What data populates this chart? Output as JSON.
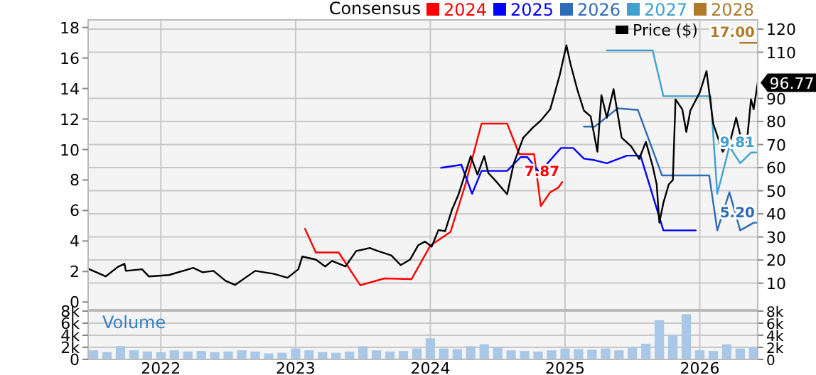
{
  "chart_data": [
    {
      "type": "line",
      "legend_title": "Consensus",
      "legend": "top",
      "grid": true,
      "tick_labels": "y",
      "xlim": [
        2021.46,
        2026.43
      ],
      "xticks": [
        2022,
        2023,
        2024,
        2025,
        2026
      ],
      "ylim": [
        -0.5,
        18.5
      ],
      "yticks": [
        0,
        2,
        4,
        6,
        8,
        10,
        12,
        14,
        16,
        18
      ],
      "y2lim": [
        -1.5,
        124
      ],
      "y2ticks": [
        10,
        20,
        30,
        40,
        50,
        60,
        70,
        80,
        90,
        110,
        120
      ],
      "series": [
        {
          "name": "2024",
          "color": "#ff0000",
          "x": [
            2023.07,
            2023.15,
            2023.32,
            2023.48,
            2023.66,
            2023.86,
            2024.0,
            2024.15,
            2024.26,
            2024.38,
            2024.57,
            2024.66,
            2024.77,
            2024.82,
            2024.89,
            2024.95,
            2024.98
          ],
          "values": [
            4.8,
            3.25,
            3.25,
            1.1,
            1.55,
            1.5,
            3.7,
            4.6,
            7.7,
            11.7,
            11.7,
            9.7,
            9.7,
            6.3,
            7.2,
            7.5,
            7.87
          ],
          "value_labels": [
            null,
            null,
            null,
            null,
            null,
            null,
            null,
            null,
            null,
            null,
            null,
            null,
            null,
            null,
            null,
            null,
            "7.87"
          ]
        },
        {
          "name": "2025",
          "color": "#0000ff",
          "x": [
            2024.08,
            2024.23,
            2024.31,
            2024.38,
            2024.57,
            2024.67,
            2024.72,
            2024.81,
            2024.97,
            2025.06,
            2025.14,
            2025.22,
            2025.31,
            2025.46,
            2025.56,
            2025.73,
            2025.97
          ],
          "values": [
            8.8,
            9.0,
            7.1,
            8.6,
            8.6,
            9.5,
            9.5,
            8.5,
            10.1,
            10.1,
            9.4,
            9.3,
            9.1,
            9.6,
            9.6,
            4.7,
            4.7
          ]
        },
        {
          "name": "2026",
          "color": "#2e6cb8",
          "x": [
            2025.14,
            2025.22,
            2025.39,
            2025.54,
            2025.72,
            2026.07,
            2026.13,
            2026.22,
            2026.3,
            2026.4,
            2026.43
          ],
          "values": [
            11.5,
            11.5,
            12.7,
            12.6,
            8.3,
            8.3,
            4.7,
            7.2,
            4.7,
            5.2,
            5.2
          ],
          "value_labels": [
            null,
            null,
            null,
            null,
            null,
            null,
            null,
            null,
            null,
            null,
            "5.20"
          ]
        },
        {
          "name": "2027",
          "color": "#40a0d0",
          "x": [
            2025.31,
            2025.65,
            2025.73,
            2026.08,
            2026.13,
            2026.22,
            2026.3,
            2026.38,
            2026.43
          ],
          "values": [
            16.5,
            16.5,
            13.5,
            13.5,
            7.1,
            10.2,
            9.1,
            9.8,
            9.81
          ],
          "value_labels": [
            null,
            null,
            null,
            null,
            null,
            null,
            null,
            null,
            "9.81"
          ]
        },
        {
          "name": "2028",
          "color": "#b07a2a",
          "x": [
            2026.3,
            2026.43
          ],
          "values": [
            17.0,
            17.0
          ],
          "value_labels": [
            null,
            "17.00"
          ]
        },
        {
          "name": "Price ($)",
          "color": "#000000",
          "axis": "y2",
          "x": [
            2021.47,
            2021.59,
            2021.68,
            2021.73,
            2021.74,
            2021.86,
            2021.91,
            2022.06,
            2022.24,
            2022.31,
            2022.39,
            2022.48,
            2022.55,
            2022.7,
            2022.84,
            2022.94,
            2023.02,
            2023.05,
            2023.15,
            2023.22,
            2023.27,
            2023.37,
            2023.45,
            2023.55,
            2023.61,
            2023.71,
            2023.78,
            2023.85,
            2023.91,
            2023.96,
            2024.01,
            2024.06,
            2024.11,
            2024.16,
            2024.21,
            2024.3,
            2024.35,
            2024.4,
            2024.43,
            2024.48,
            2024.57,
            2024.62,
            2024.69,
            2024.76,
            2024.82,
            2024.89,
            2024.96,
            2025.01,
            2025.04,
            2025.09,
            2025.14,
            2025.19,
            2025.24,
            2025.27,
            2025.31,
            2025.36,
            2025.42,
            2025.49,
            2025.55,
            2025.6,
            2025.65,
            2025.68,
            2025.7,
            2025.73,
            2025.77,
            2025.8,
            2025.82,
            2025.87,
            2025.9,
            2025.93,
            2026.0,
            2026.05,
            2026.1,
            2026.17,
            2026.23,
            2026.27,
            2026.32,
            2026.35,
            2026.38,
            2026.4,
            2026.43
          ],
          "values": [
            16,
            12.9,
            17,
            18.4,
            15.3,
            16,
            12.9,
            13.5,
            16.6,
            14.7,
            15.3,
            11,
            9.2,
            15.3,
            14,
            12.3,
            16,
            21.5,
            20.2,
            17.2,
            19.6,
            17.2,
            23.9,
            25.2,
            23.9,
            22,
            17.8,
            20.2,
            26.4,
            28,
            25.8,
            33,
            32.5,
            41.7,
            48.5,
            65,
            57,
            65,
            57.7,
            54.6,
            48.5,
            62,
            73,
            77.3,
            80.4,
            85.3,
            100,
            113,
            105,
            94,
            84.7,
            82.2,
            66.9,
            91.4,
            81.6,
            94,
            73,
            69.3,
            63.8,
            71.2,
            60.7,
            52.8,
            36.2,
            44.8,
            52.8,
            54.6,
            89.6,
            85.3,
            75.5,
            84.7,
            92.6,
            101.8,
            79,
            66.9,
            72.4,
            81.6,
            69.3,
            71.2,
            89.6,
            85.3,
            96.77
          ],
          "value_labels": [
            null,
            null,
            null,
            null,
            null,
            null,
            null,
            null,
            null,
            null,
            null,
            null,
            null,
            null,
            null,
            null,
            null,
            null,
            null,
            null,
            null,
            null,
            null,
            null,
            null,
            null,
            null,
            null,
            null,
            null,
            null,
            null,
            null,
            null,
            null,
            null,
            null,
            null,
            null,
            null,
            null,
            null,
            null,
            null,
            null,
            null,
            null,
            null,
            null,
            null,
            null,
            null,
            null,
            null,
            null,
            null,
            null,
            null,
            null,
            null,
            null,
            null,
            null,
            null,
            null,
            null,
            null,
            null,
            null,
            null,
            null,
            null,
            null,
            null,
            null,
            null,
            null,
            null,
            null,
            null,
            "96.77"
          ]
        }
      ]
    },
    {
      "type": "bar",
      "title": "Volume",
      "grid": true,
      "color": "#a9c8e8",
      "xlim": [
        2021.46,
        2026.43
      ],
      "xticks": [
        2022,
        2023,
        2024,
        2025,
        2026
      ],
      "ylim": [
        0,
        8000
      ],
      "yticks": [
        {
          "value": 0,
          "label": "0"
        },
        {
          "value": 2000,
          "label": "2k"
        },
        {
          "value": 4000,
          "label": "4k"
        },
        {
          "value": 6000,
          "label": "6k"
        },
        {
          "value": 8000,
          "label": "8k"
        }
      ],
      "x": [
        2021.5,
        2021.6,
        2021.7,
        2021.8,
        2021.9,
        2022.0,
        2022.1,
        2022.2,
        2022.3,
        2022.4,
        2022.5,
        2022.6,
        2022.7,
        2022.8,
        2022.9,
        2023.0,
        2023.1,
        2023.2,
        2023.3,
        2023.4,
        2023.5,
        2023.6,
        2023.7,
        2023.8,
        2023.9,
        2024.0,
        2024.1,
        2024.2,
        2024.3,
        2024.4,
        2024.5,
        2024.6,
        2024.7,
        2024.8,
        2024.9,
        2025.0,
        2025.1,
        2025.2,
        2025.3,
        2025.4,
        2025.5,
        2025.6,
        2025.7,
        2025.8,
        2025.9,
        2026.0,
        2026.1,
        2026.2,
        2026.3,
        2026.4
      ],
      "values": [
        1500,
        1200,
        2200,
        1500,
        1300,
        1200,
        1500,
        1300,
        1400,
        1200,
        1300,
        1500,
        1300,
        1000,
        1100,
        1800,
        1500,
        1200,
        1100,
        1300,
        2200,
        1500,
        1300,
        1400,
        1800,
        3500,
        1800,
        1700,
        2200,
        2500,
        2000,
        1500,
        1400,
        1300,
        1500,
        1800,
        1700,
        1600,
        1800,
        1500,
        2000,
        2600,
        6500,
        4000,
        7500,
        1500,
        1400,
        2500,
        1800,
        2000
      ]
    }
  ]
}
